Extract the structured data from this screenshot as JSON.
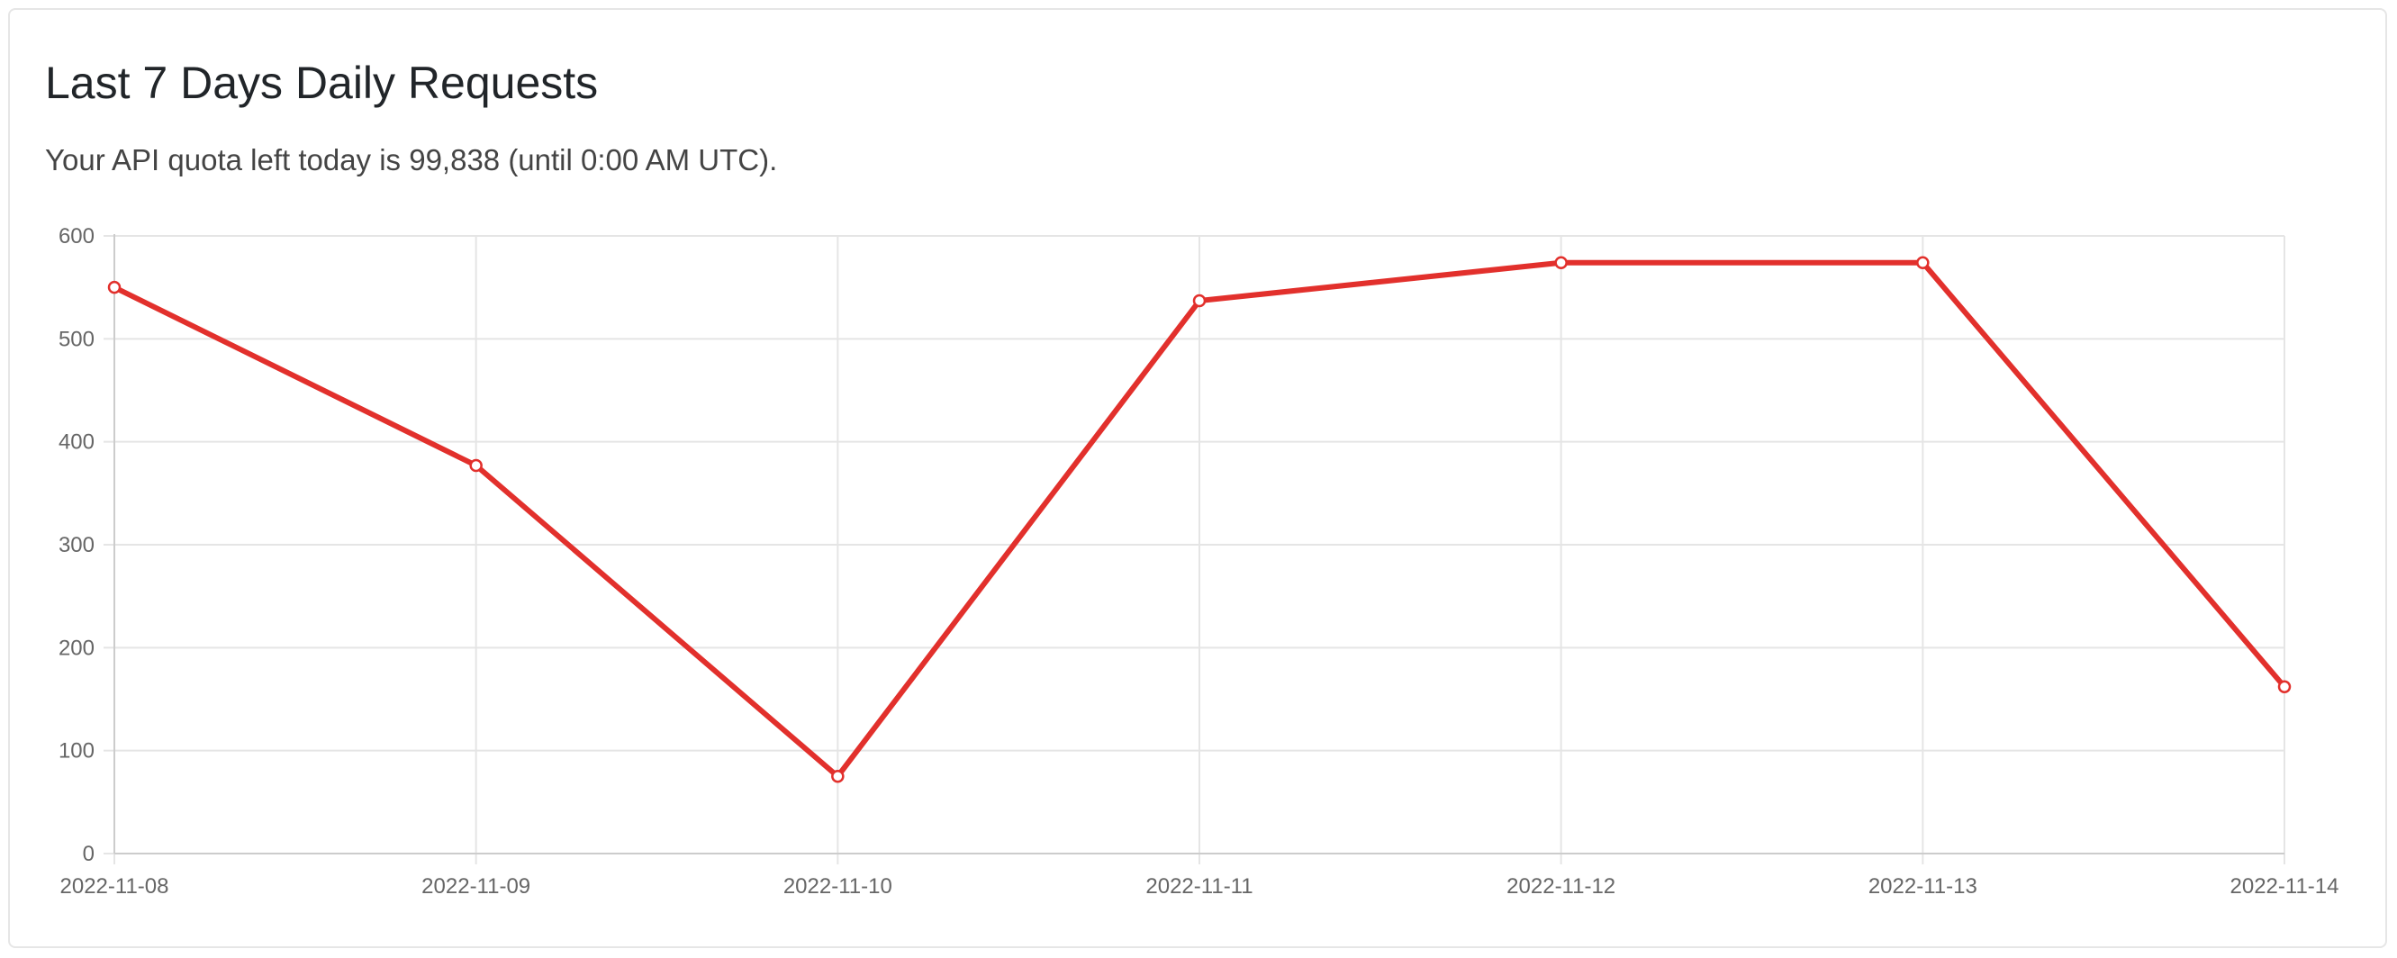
{
  "card": {
    "title": "Last 7 Days Daily Requests",
    "subtitle": "Your API quota left today is 99,838 (until 0:00 AM UTC)."
  },
  "chart_data": {
    "type": "line",
    "title": "",
    "xlabel": "",
    "ylabel": "",
    "categories": [
      "2022-11-08",
      "2022-11-09",
      "2022-11-10",
      "2022-11-11",
      "2022-11-12",
      "2022-11-13",
      "2022-11-14"
    ],
    "series": [
      {
        "values": [
          550,
          377,
          75,
          537,
          574,
          574,
          162
        ],
        "color": "#e2302c"
      }
    ],
    "ylim": [
      0,
      600
    ],
    "yticks": [
      0,
      100,
      200,
      300,
      400,
      500,
      600
    ],
    "grid": true,
    "legend": "none",
    "colors": {
      "line": "#e2302c",
      "grid": "#e5e5e5",
      "axis": "#cccccc",
      "tick_text": "#666666"
    }
  }
}
